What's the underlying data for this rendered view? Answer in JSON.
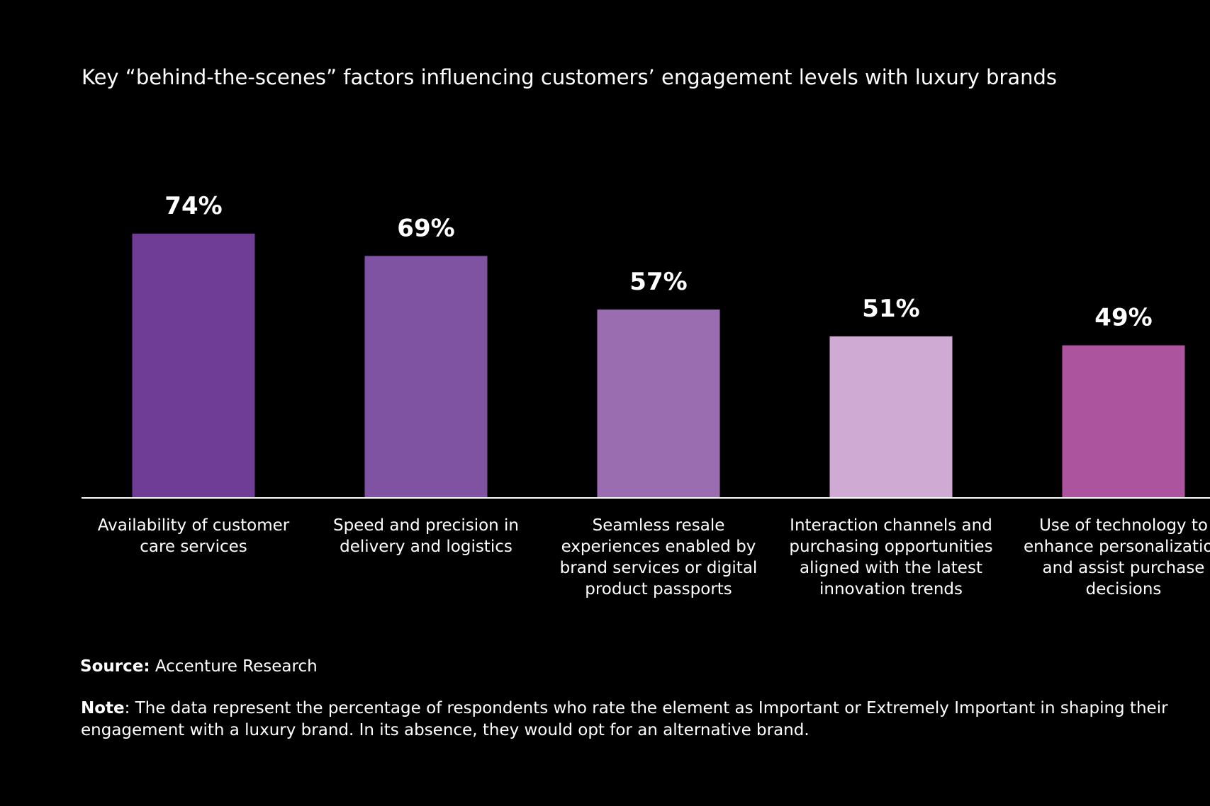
{
  "chart_data": {
    "type": "bar",
    "title": "Key “behind-the-scenes” factors influencing customers’ engagement levels with luxury brands",
    "categories": [
      "Availability of customer care services",
      "Speed and precision in delivery and logistics",
      "Seamless resale experiences enabled by brand services or digital product passports",
      "Interaction channels and purchasing opportunities aligned with the latest innovation trends",
      "Use of technology to enhance personalization and assist purchase decisions"
    ],
    "values": [
      74,
      69,
      57,
      51,
      49
    ],
    "value_labels": [
      "74%",
      "69%",
      "57%",
      "51%",
      "49%"
    ],
    "colors": [
      "#6f3d96",
      "#8052a2",
      "#9a6db0",
      "#cfaad3",
      "#ac559e"
    ],
    "ylim": [
      15,
      80
    ]
  },
  "footer": {
    "source_label": "Source:",
    "source": "Accenture Research",
    "note_label": "Note",
    "note": ": The data represent the percentage of respondents who rate the element as Important or Extremely Important in shaping their engagement with a luxury brand. In its absence, they would opt for an alternative brand."
  }
}
